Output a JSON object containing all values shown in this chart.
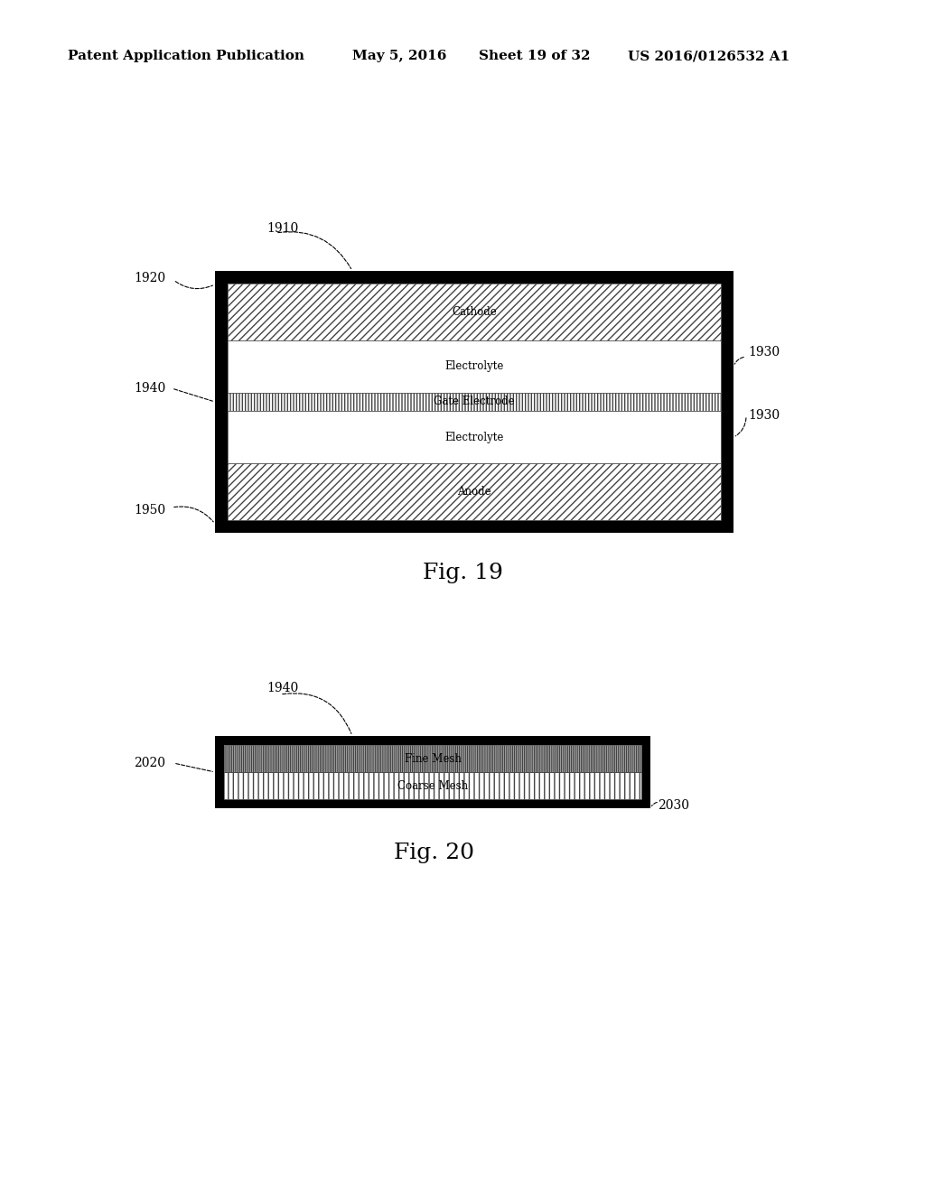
{
  "bg_color": "#ffffff",
  "header_text": "Patent Application Publication",
  "header_date": "May 5, 2016",
  "header_sheet": "Sheet 19 of 32",
  "header_patent": "US 2016/0126532 A1",
  "header_fontsize": 11,
  "fig19_title": "Fig. 19",
  "fig19_title_fontsize": 18,
  "fig19_cathode_label": "Cathode",
  "fig19_electrolyte1_label": "Electrolyte",
  "fig19_gate_label": "Gate Electrode",
  "fig19_electrolyte2_label": "Electrolyte",
  "fig19_anode_label": "Anode",
  "fig19_label_1910": "1910",
  "fig19_label_1920": "1920",
  "fig19_label_1930a": "1930",
  "fig19_label_1930b": "1930",
  "fig19_label_1940": "1940",
  "fig19_label_1950": "1950",
  "fig20_title": "Fig. 20",
  "fig20_title_fontsize": 18,
  "fig20_fine_label": "Fine Mesh",
  "fig20_coarse_label": "Coarse Mesh",
  "fig20_label_1940": "1940",
  "fig20_label_2020": "2020",
  "fig20_label_2030": "2030",
  "label_fontsize": 10,
  "inner_label_fontsize": 8.5
}
